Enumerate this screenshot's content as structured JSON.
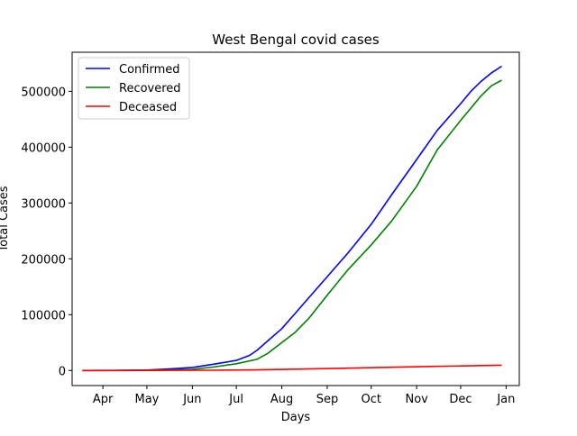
{
  "chart_data": {
    "type": "line",
    "title": "West Bengal covid cases",
    "xlabel": "Days",
    "ylabel": "Total Cases",
    "x_axis_type": "date",
    "xlim": [
      "2020-03-11",
      "2021-01-10"
    ],
    "ylim": [
      -27000,
      570000
    ],
    "x_ticks": [
      {
        "date": "2020-04-01",
        "label": "Apr"
      },
      {
        "date": "2020-05-01",
        "label": "May"
      },
      {
        "date": "2020-06-01",
        "label": "Jun"
      },
      {
        "date": "2020-07-01",
        "label": "Jul"
      },
      {
        "date": "2020-08-01",
        "label": "Aug"
      },
      {
        "date": "2020-09-01",
        "label": "Sep"
      },
      {
        "date": "2020-10-01",
        "label": "Oct"
      },
      {
        "date": "2020-11-01",
        "label": "Nov"
      },
      {
        "date": "2020-12-01",
        "label": "Dec"
      },
      {
        "date": "2021-01-01",
        "label": "Jan"
      }
    ],
    "y_ticks": [
      {
        "value": 0,
        "label": "0"
      },
      {
        "value": 100000,
        "label": "100000"
      },
      {
        "value": 200000,
        "label": "200000"
      },
      {
        "value": 300000,
        "label": "300000"
      },
      {
        "value": 400000,
        "label": "400000"
      },
      {
        "value": 500000,
        "label": "500000"
      }
    ],
    "grid": false,
    "legend_position": "top-left",
    "series": [
      {
        "name": "Confirmed",
        "color": "#0000ff",
        "points": [
          [
            "2020-03-18",
            0
          ],
          [
            "2020-04-01",
            50
          ],
          [
            "2020-04-15",
            200
          ],
          [
            "2020-05-01",
            800
          ],
          [
            "2020-05-15",
            2500
          ],
          [
            "2020-06-01",
            5500
          ],
          [
            "2020-06-15",
            11000
          ],
          [
            "2020-07-01",
            18000
          ],
          [
            "2020-07-10",
            27000
          ],
          [
            "2020-07-15",
            36000
          ],
          [
            "2020-07-22",
            52000
          ],
          [
            "2020-08-01",
            75000
          ],
          [
            "2020-08-10",
            102000
          ],
          [
            "2020-08-20",
            132000
          ],
          [
            "2020-09-01",
            168000
          ],
          [
            "2020-09-15",
            210000
          ],
          [
            "2020-10-01",
            262000
          ],
          [
            "2020-10-15",
            315000
          ],
          [
            "2020-11-01",
            378000
          ],
          [
            "2020-11-15",
            430000
          ],
          [
            "2020-12-01",
            478000
          ],
          [
            "2020-12-08",
            500000
          ],
          [
            "2020-12-15",
            518000
          ],
          [
            "2020-12-22",
            533000
          ],
          [
            "2020-12-29",
            545000
          ]
        ]
      },
      {
        "name": "Recovered",
        "color": "#008000",
        "points": [
          [
            "2020-03-18",
            0
          ],
          [
            "2020-04-01",
            0
          ],
          [
            "2020-04-15",
            30
          ],
          [
            "2020-05-01",
            200
          ],
          [
            "2020-05-15",
            700
          ],
          [
            "2020-06-01",
            2000
          ],
          [
            "2020-06-15",
            6000
          ],
          [
            "2020-07-01",
            12000
          ],
          [
            "2020-07-15",
            20000
          ],
          [
            "2020-07-22",
            30000
          ],
          [
            "2020-08-01",
            50000
          ],
          [
            "2020-08-10",
            68000
          ],
          [
            "2020-08-20",
            95000
          ],
          [
            "2020-09-01",
            135000
          ],
          [
            "2020-09-15",
            180000
          ],
          [
            "2020-10-01",
            225000
          ],
          [
            "2020-10-15",
            268000
          ],
          [
            "2020-11-01",
            330000
          ],
          [
            "2020-11-15",
            395000
          ],
          [
            "2020-12-01",
            448000
          ],
          [
            "2020-12-08",
            470000
          ],
          [
            "2020-12-15",
            492000
          ],
          [
            "2020-12-22",
            510000
          ],
          [
            "2020-12-29",
            520000
          ]
        ]
      },
      {
        "name": "Deceased",
        "color": "#ff0000",
        "points": [
          [
            "2020-03-18",
            0
          ],
          [
            "2020-04-15",
            10
          ],
          [
            "2020-05-15",
            200
          ],
          [
            "2020-06-15",
            500
          ],
          [
            "2020-07-15",
            1000
          ],
          [
            "2020-08-15",
            2600
          ],
          [
            "2020-09-15",
            4200
          ],
          [
            "2020-10-15",
            5800
          ],
          [
            "2020-11-15",
            7400
          ],
          [
            "2020-12-15",
            8800
          ],
          [
            "2020-12-29",
            9500
          ]
        ]
      }
    ]
  }
}
